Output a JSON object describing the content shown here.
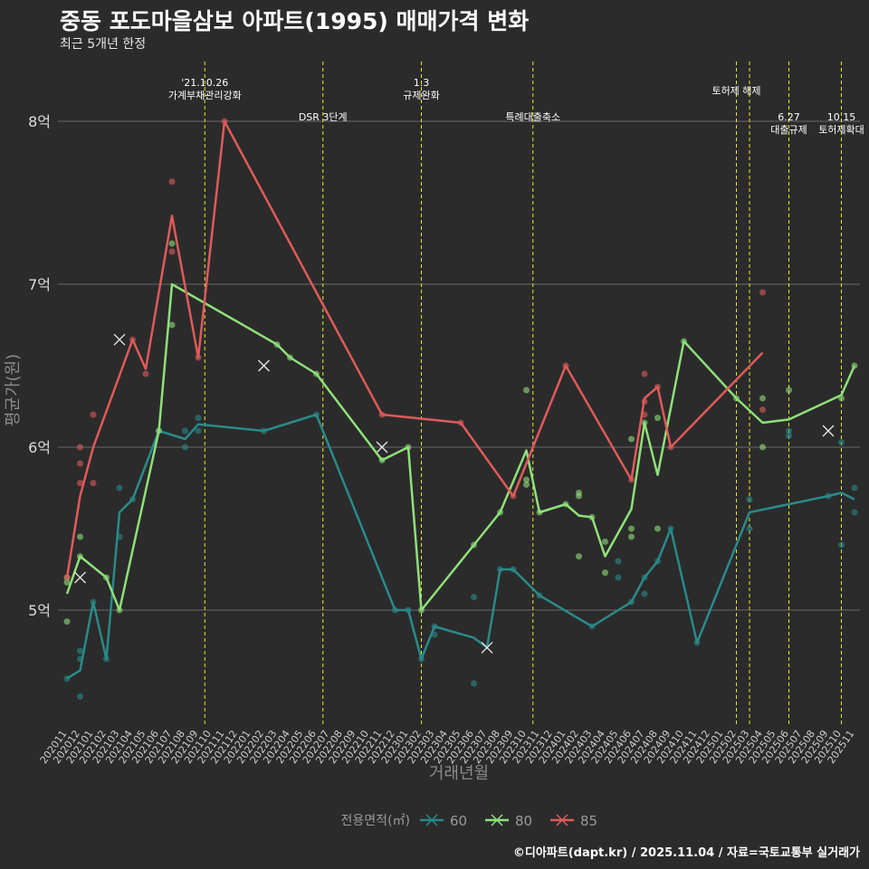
{
  "header": {
    "title": "중동 포도마을삼보 아파트(1995) 매매가격 변화",
    "subtitle": "최근 5개년 한정"
  },
  "caption": "©디아파트(dapt.kr) / 2025.11.04 / 자료=국토교통부 실거래가",
  "chart_data": {
    "type": "line",
    "title": "중동 포도마을삼보 아파트(1995) 매매가격 변화",
    "xlabel": "거래년월",
    "ylabel": "평균가(원)",
    "ylim": [
      4.3,
      8.4
    ],
    "yticks": [
      {
        "v": 5,
        "label": "5억"
      },
      {
        "v": 6,
        "label": "6억"
      },
      {
        "v": 7,
        "label": "7억"
      },
      {
        "v": 8,
        "label": "8억"
      }
    ],
    "categories": [
      "202011",
      "202012",
      "202101",
      "202102",
      "202103",
      "202104",
      "202105",
      "202106",
      "202107",
      "202108",
      "202109",
      "202110",
      "202111",
      "202112",
      "202201",
      "202202",
      "202203",
      "202204",
      "202205",
      "202206",
      "202207",
      "202208",
      "202209",
      "202210",
      "202211",
      "202212",
      "202301",
      "202302",
      "202303",
      "202304",
      "202305",
      "202306",
      "202307",
      "202308",
      "202309",
      "202310",
      "202311",
      "202312",
      "202401",
      "202402",
      "202403",
      "202404",
      "202405",
      "202406",
      "202407",
      "202408",
      "202409",
      "202410",
      "202411",
      "202412",
      "202501",
      "202502",
      "202503",
      "202504",
      "202505",
      "202506",
      "202507",
      "202508",
      "202509",
      "202510",
      "202511"
    ],
    "legend_title": "전용면적(㎡)",
    "legend_position": "bottom",
    "colors": {
      "60": "#2a8a8a",
      "80": "#8fe07a",
      "85": "#e05a5a",
      "event": "#e8e833"
    },
    "series": [
      {
        "name": "60",
        "line": [
          [
            0,
            4.58
          ],
          [
            1,
            4.63
          ],
          [
            2,
            5.05
          ],
          [
            3,
            4.7
          ],
          [
            4,
            5.6
          ],
          [
            5,
            5.68
          ],
          [
            7,
            6.1
          ],
          [
            9,
            6.05
          ],
          [
            10,
            6.14
          ],
          [
            15,
            6.1
          ],
          [
            19,
            6.2
          ],
          [
            25,
            5.0
          ],
          [
            26,
            5.0
          ],
          [
            27,
            4.7
          ],
          [
            28,
            4.9
          ],
          [
            31,
            4.83
          ],
          [
            32,
            4.77
          ],
          [
            33,
            5.25
          ],
          [
            34,
            5.25
          ],
          [
            36,
            5.09
          ],
          [
            40,
            4.9
          ],
          [
            43,
            5.05
          ],
          [
            44,
            5.2
          ],
          [
            45,
            5.3
          ],
          [
            46,
            5.5
          ],
          [
            48,
            4.8
          ],
          [
            52,
            5.6
          ],
          [
            58,
            5.7
          ],
          [
            59,
            5.72
          ],
          [
            60,
            5.68
          ]
        ],
        "points": [
          [
            0,
            4.58
          ],
          [
            1,
            4.47
          ],
          [
            1,
            4.7
          ],
          [
            1,
            4.75
          ],
          [
            2,
            5.05
          ],
          [
            3,
            4.7
          ],
          [
            4,
            5.75
          ],
          [
            4,
            5.45
          ],
          [
            5,
            5.68
          ],
          [
            7,
            6.1
          ],
          [
            9,
            6.0
          ],
          [
            9,
            6.1
          ],
          [
            10,
            6.18
          ],
          [
            10,
            6.1
          ],
          [
            15,
            6.1
          ],
          [
            19,
            6.2
          ],
          [
            25,
            5.0
          ],
          [
            26,
            5.0
          ],
          [
            27,
            4.7
          ],
          [
            28,
            4.85
          ],
          [
            28,
            4.9
          ],
          [
            31,
            4.55
          ],
          [
            31,
            5.08
          ],
          [
            33,
            5.25
          ],
          [
            34,
            5.25
          ],
          [
            36,
            5.09
          ],
          [
            40,
            4.9
          ],
          [
            42,
            5.2
          ],
          [
            42,
            5.3
          ],
          [
            43,
            5.05
          ],
          [
            44,
            5.1
          ],
          [
            44,
            5.2
          ],
          [
            45,
            5.3
          ],
          [
            46,
            5.5
          ],
          [
            48,
            4.8
          ],
          [
            52,
            5.68
          ],
          [
            52,
            5.5
          ],
          [
            55,
            6.07
          ],
          [
            55,
            6.1
          ],
          [
            58,
            5.7
          ],
          [
            59,
            5.4
          ],
          [
            59,
            6.03
          ],
          [
            60,
            5.6
          ],
          [
            60,
            5.75
          ]
        ],
        "crosses": [
          [
            32,
            4.77
          ],
          [
            24,
            6.0
          ],
          [
            58,
            6.1
          ]
        ]
      },
      {
        "name": "80",
        "line": [
          [
            0,
            5.1
          ],
          [
            1,
            5.33
          ],
          [
            3,
            5.2
          ],
          [
            4,
            5.0
          ],
          [
            7,
            6.1
          ],
          [
            8,
            7.0
          ],
          [
            16,
            6.63
          ],
          [
            17,
            6.55
          ],
          [
            19,
            6.45
          ],
          [
            24,
            5.92
          ],
          [
            26,
            6.0
          ],
          [
            27,
            5.0
          ],
          [
            31,
            5.4
          ],
          [
            33,
            5.6
          ],
          [
            35,
            5.98
          ],
          [
            36,
            5.6
          ],
          [
            38,
            5.65
          ],
          [
            39,
            5.58
          ],
          [
            40,
            5.57
          ],
          [
            41,
            5.33
          ],
          [
            43,
            5.62
          ],
          [
            44,
            6.15
          ],
          [
            45,
            5.83
          ],
          [
            47,
            6.65
          ],
          [
            51,
            6.3
          ],
          [
            53,
            6.15
          ],
          [
            55,
            6.17
          ],
          [
            59,
            6.32
          ],
          [
            60,
            6.5
          ]
        ],
        "points": [
          [
            0,
            5.2
          ],
          [
            0,
            5.17
          ],
          [
            0,
            4.93
          ],
          [
            1,
            5.45
          ],
          [
            1,
            5.33
          ],
          [
            3,
            5.2
          ],
          [
            4,
            5.0
          ],
          [
            7,
            6.1
          ],
          [
            8,
            6.75
          ],
          [
            8,
            7.25
          ],
          [
            16,
            6.63
          ],
          [
            17,
            6.55
          ],
          [
            19,
            6.45
          ],
          [
            24,
            5.92
          ],
          [
            26,
            6.0
          ],
          [
            27,
            5.0
          ],
          [
            31,
            5.4
          ],
          [
            33,
            5.6
          ],
          [
            35,
            6.35
          ],
          [
            35,
            5.8
          ],
          [
            35,
            5.77
          ],
          [
            36,
            5.6
          ],
          [
            38,
            5.65
          ],
          [
            39,
            5.7
          ],
          [
            39,
            5.72
          ],
          [
            39,
            5.33
          ],
          [
            40,
            5.57
          ],
          [
            41,
            5.42
          ],
          [
            41,
            5.23
          ],
          [
            43,
            5.45
          ],
          [
            43,
            5.5
          ],
          [
            43,
            6.05
          ],
          [
            44,
            6.15
          ],
          [
            45,
            6.18
          ],
          [
            45,
            5.5
          ],
          [
            47,
            6.65
          ],
          [
            51,
            6.3
          ],
          [
            53,
            6.3
          ],
          [
            53,
            6.0
          ],
          [
            55,
            6.35
          ],
          [
            59,
            6.3
          ],
          [
            60,
            6.5
          ]
        ],
        "crosses": [
          [
            1,
            5.2
          ],
          [
            15,
            6.5
          ]
        ]
      },
      {
        "name": "85",
        "line": [
          [
            0,
            5.2
          ],
          [
            1,
            5.7
          ],
          [
            2,
            6.0
          ],
          [
            5,
            6.66
          ],
          [
            6,
            6.48
          ],
          [
            8,
            7.42
          ],
          [
            10,
            6.55
          ],
          [
            12,
            8.0
          ],
          [
            24,
            6.2
          ],
          [
            30,
            6.15
          ],
          [
            34,
            5.7
          ],
          [
            38,
            6.5
          ],
          [
            43,
            5.8
          ],
          [
            44,
            6.3
          ],
          [
            45,
            6.37
          ],
          [
            46,
            6.0
          ],
          [
            53,
            6.58
          ]
        ],
        "points": [
          [
            0,
            5.2
          ],
          [
            1,
            6.0
          ],
          [
            1,
            5.9
          ],
          [
            1,
            5.78
          ],
          [
            2,
            6.2
          ],
          [
            2,
            5.78
          ],
          [
            5,
            6.66
          ],
          [
            6,
            6.45
          ],
          [
            8,
            7.63
          ],
          [
            8,
            7.2
          ],
          [
            10,
            6.55
          ],
          [
            12,
            8.0
          ],
          [
            24,
            6.2
          ],
          [
            30,
            6.15
          ],
          [
            34,
            5.7
          ],
          [
            38,
            6.5
          ],
          [
            43,
            5.8
          ],
          [
            44,
            6.45
          ],
          [
            44,
            6.28
          ],
          [
            44,
            6.2
          ],
          [
            45,
            6.37
          ],
          [
            46,
            6.0
          ],
          [
            53,
            6.95
          ],
          [
            53,
            6.23
          ]
        ],
        "crosses": [
          [
            4,
            6.66
          ]
        ]
      }
    ],
    "events": [
      {
        "x": 10.5,
        "lines": [
          "'21.10.26",
          "가계부채관리강화"
        ],
        "tier": "top"
      },
      {
        "x": 19.5,
        "lines": [
          "DSR 3단계"
        ],
        "tier": "low"
      },
      {
        "x": 27.0,
        "lines": [
          "1.3",
          "규제완화"
        ],
        "tier": "top"
      },
      {
        "x": 35.5,
        "lines": [
          "특례대출축소"
        ],
        "tier": "low"
      },
      {
        "x": 51.0,
        "lines": [
          "토허제 해제"
        ],
        "tier": "mid"
      },
      {
        "x": 52.0,
        "lines": [],
        "tier": "none"
      },
      {
        "x": 55.0,
        "lines": [
          "6.27",
          "대출규제"
        ],
        "tier": "low"
      },
      {
        "x": 59.0,
        "lines": [
          "10.15",
          "토허제확대"
        ],
        "tier": "low"
      }
    ]
  }
}
